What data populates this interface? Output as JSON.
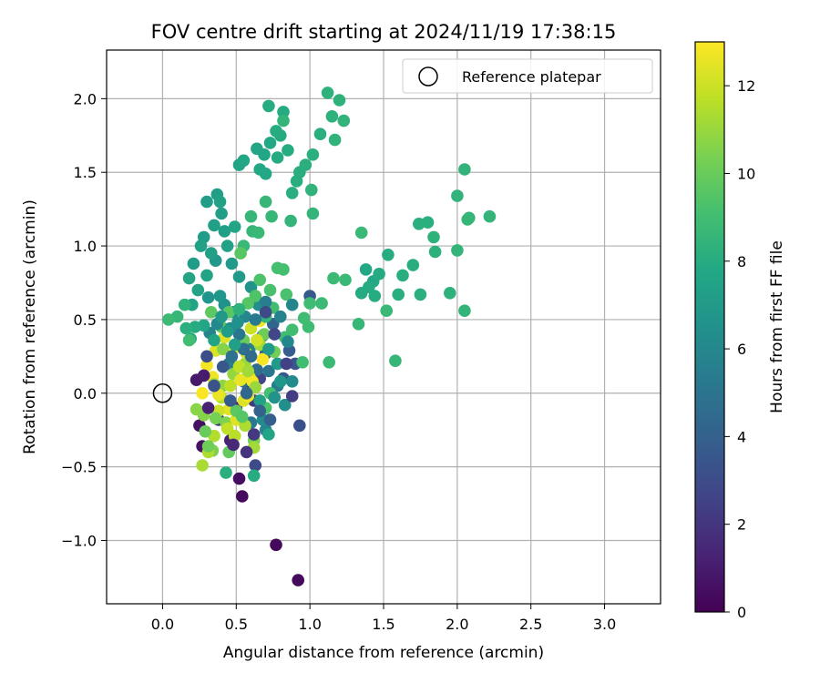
{
  "chart_data": {
    "type": "scatter",
    "title": "FOV centre drift starting at 2024/11/19 17:38:15",
    "xlabel": "Angular distance from reference (arcmin)",
    "ylabel": "Rotation from reference (arcmin)",
    "xlim": [
      -0.38,
      3.38
    ],
    "ylim": [
      -1.43,
      2.33
    ],
    "x_ticks": [
      0.0,
      0.5,
      1.0,
      1.5,
      2.0,
      2.5,
      3.0
    ],
    "x_tick_labels": [
      "0.0",
      "0.5",
      "1.0",
      "1.5",
      "2.0",
      "2.5",
      "3.0"
    ],
    "y_ticks": [
      -1.0,
      -0.5,
      0.0,
      0.5,
      1.0,
      1.5,
      2.0
    ],
    "y_tick_labels": [
      "−1.0",
      "−0.5",
      "0.0",
      "0.5",
      "1.0",
      "1.5",
      "2.0"
    ],
    "grid": true,
    "legend": {
      "position": "upper-right",
      "entries": [
        "Reference platepar"
      ]
    },
    "reference_point": {
      "x": 0.0,
      "y": 0.0
    },
    "colorbar": {
      "label": "Hours from first FF file",
      "range": [
        0,
        13
      ],
      "ticks": [
        0,
        2,
        4,
        6,
        8,
        10,
        12
      ],
      "tick_labels": [
        "0",
        "2",
        "4",
        "6",
        "8",
        "10",
        "12"
      ],
      "colormap": "viridis"
    },
    "points": [
      [
        0.77,
        -1.03,
        0.3
      ],
      [
        0.92,
        -1.27,
        0.3
      ],
      [
        0.54,
        -0.7,
        0.4
      ],
      [
        0.52,
        -0.58,
        0.5
      ],
      [
        0.25,
        -0.22,
        0.6
      ],
      [
        0.27,
        -0.36,
        0.6
      ],
      [
        0.23,
        0.09,
        0.9
      ],
      [
        0.46,
        -0.32,
        1.2
      ],
      [
        0.5,
        -0.1,
        1.6
      ],
      [
        0.58,
        0.02,
        1.8
      ],
      [
        0.38,
        -0.18,
        2.0
      ],
      [
        0.62,
        -0.05,
        2.2
      ],
      [
        0.66,
        0.1,
        2.6
      ],
      [
        0.63,
        -0.49,
        3.0
      ],
      [
        0.93,
        -0.22,
        3.2
      ],
      [
        0.9,
        0.2,
        3.4
      ],
      [
        0.82,
        0.1,
        3.5
      ],
      [
        1.0,
        0.66,
        3.6
      ],
      [
        0.86,
        0.29,
        3.8
      ],
      [
        0.7,
        0.27,
        4.0
      ],
      [
        0.75,
        0.47,
        4.2
      ],
      [
        0.68,
        0.39,
        4.4
      ],
      [
        0.64,
        0.16,
        4.6
      ],
      [
        0.55,
        0.08,
        4.8
      ],
      [
        0.72,
        0.15,
        5.0
      ],
      [
        0.6,
        -0.2,
        5.2
      ],
      [
        0.78,
        0.05,
        5.4
      ],
      [
        0.45,
        0.2,
        5.5
      ],
      [
        0.59,
        0.3,
        5.6
      ],
      [
        0.7,
        -0.25,
        5.8
      ],
      [
        0.56,
        0.52,
        6.0
      ],
      [
        0.88,
        0.08,
        6.2
      ],
      [
        0.48,
        0.55,
        6.3
      ],
      [
        0.65,
        0.6,
        6.4
      ],
      [
        0.42,
        0.6,
        6.5
      ],
      [
        0.6,
        0.72,
        6.6
      ],
      [
        0.31,
        0.65,
        6.7
      ],
      [
        0.39,
        0.66,
        6.8
      ],
      [
        0.36,
        0.9,
        6.9
      ],
      [
        0.47,
        0.88,
        7.0
      ],
      [
        0.52,
        0.79,
        7.0
      ],
      [
        0.21,
        0.88,
        7.1
      ],
      [
        0.28,
        1.06,
        7.1
      ],
      [
        0.3,
        1.3,
        7.2
      ],
      [
        0.37,
        1.35,
        7.2
      ],
      [
        0.4,
        1.22,
        7.2
      ],
      [
        0.42,
        1.1,
        7.3
      ],
      [
        0.35,
        1.14,
        7.3
      ],
      [
        0.33,
        0.95,
        7.3
      ],
      [
        0.44,
        1.0,
        7.4
      ],
      [
        0.39,
        1.3,
        7.4
      ],
      [
        0.26,
        1.0,
        7.4
      ],
      [
        0.3,
        0.8,
        7.5
      ],
      [
        0.24,
        0.7,
        7.5
      ],
      [
        0.2,
        0.6,
        7.5
      ],
      [
        0.18,
        0.78,
        7.6
      ],
      [
        0.49,
        1.13,
        7.6
      ],
      [
        0.52,
        1.55,
        7.6
      ],
      [
        0.55,
        1.58,
        7.7
      ],
      [
        0.64,
        1.66,
        7.7
      ],
      [
        0.69,
        1.62,
        7.7
      ],
      [
        0.7,
        1.49,
        7.8
      ],
      [
        0.73,
        1.7,
        7.8
      ],
      [
        0.66,
        1.52,
        7.8
      ],
      [
        0.78,
        1.6,
        7.9
      ],
      [
        0.8,
        1.75,
        7.9
      ],
      [
        0.82,
        1.91,
        7.9
      ],
      [
        0.77,
        1.78,
        8.0
      ],
      [
        0.72,
        1.95,
        8.0
      ],
      [
        0.85,
        1.65,
        8.0
      ],
      [
        0.88,
        1.36,
        8.1
      ],
      [
        0.93,
        1.5,
        8.1
      ],
      [
        0.91,
        1.44,
        8.1
      ],
      [
        0.97,
        1.55,
        8.2
      ],
      [
        1.02,
        1.62,
        8.2
      ],
      [
        1.07,
        1.76,
        8.2
      ],
      [
        1.12,
        2.04,
        8.3
      ],
      [
        1.15,
        1.88,
        8.3
      ],
      [
        1.2,
        1.99,
        8.3
      ],
      [
        1.23,
        1.85,
        8.4
      ],
      [
        1.17,
        1.72,
        8.4
      ],
      [
        1.01,
        1.38,
        8.4
      ],
      [
        1.02,
        1.22,
        8.5
      ],
      [
        0.82,
        1.85,
        8.5
      ],
      [
        0.87,
        1.17,
        8.5
      ],
      [
        0.74,
        1.2,
        8.6
      ],
      [
        0.7,
        1.3,
        8.6
      ],
      [
        0.6,
        1.2,
        8.6
      ],
      [
        0.61,
        1.1,
        8.6
      ],
      [
        0.65,
        1.09,
        8.7
      ],
      [
        0.55,
        1.0,
        8.7
      ],
      [
        1.38,
        0.84,
        7.8
      ],
      [
        1.43,
        0.76,
        7.8
      ],
      [
        1.47,
        0.81,
        7.9
      ],
      [
        1.4,
        0.72,
        7.9
      ],
      [
        1.35,
        0.68,
        7.9
      ],
      [
        1.53,
        0.94,
        8.0
      ],
      [
        1.44,
        0.66,
        8.0
      ],
      [
        1.6,
        0.67,
        8.1
      ],
      [
        1.63,
        0.8,
        8.1
      ],
      [
        1.7,
        0.87,
        8.1
      ],
      [
        1.74,
        1.15,
        8.2
      ],
      [
        1.75,
        0.67,
        8.2
      ],
      [
        1.8,
        1.16,
        8.2
      ],
      [
        1.84,
        1.06,
        8.3
      ],
      [
        1.85,
        0.96,
        8.3
      ],
      [
        1.95,
        0.68,
        8.3
      ],
      [
        2.0,
        1.34,
        8.4
      ],
      [
        2.05,
        1.52,
        8.4
      ],
      [
        2.08,
        1.19,
        8.4
      ],
      [
        2.0,
        0.97,
        8.5
      ],
      [
        2.05,
        0.56,
        8.5
      ],
      [
        2.22,
        1.2,
        8.5
      ],
      [
        2.07,
        1.18,
        8.6
      ],
      [
        1.58,
        0.22,
        8.6
      ],
      [
        1.33,
        0.47,
        8.6
      ],
      [
        1.52,
        0.56,
        8.7
      ],
      [
        1.35,
        1.09,
        8.7
      ],
      [
        1.24,
        0.77,
        8.7
      ],
      [
        1.16,
        0.78,
        8.8
      ],
      [
        1.08,
        0.61,
        8.8
      ],
      [
        1.13,
        0.21,
        8.8
      ],
      [
        1.0,
        0.61,
        8.9
      ],
      [
        0.99,
        0.45,
        8.9
      ],
      [
        0.96,
        0.51,
        8.9
      ],
      [
        0.95,
        0.21,
        9.0
      ],
      [
        0.88,
        0.43,
        9.0
      ],
      [
        0.82,
        0.84,
        9.1
      ],
      [
        0.78,
        0.85,
        9.1
      ],
      [
        0.84,
        0.67,
        9.2
      ],
      [
        0.73,
        0.7,
        9.2
      ],
      [
        0.66,
        0.77,
        9.3
      ],
      [
        0.63,
        0.66,
        9.4
      ],
      [
        0.58,
        0.61,
        9.5
      ],
      [
        0.53,
        0.95,
        9.6
      ],
      [
        0.45,
        0.55,
        9.6
      ],
      [
        0.33,
        0.55,
        9.7
      ],
      [
        0.4,
        0.45,
        9.8
      ],
      [
        0.55,
        0.36,
        10.0
      ],
      [
        0.69,
        0.4,
        10.1
      ],
      [
        0.76,
        0.28,
        10.2
      ],
      [
        0.62,
        -0.32,
        10.3
      ],
      [
        0.34,
        -0.39,
        10.4
      ],
      [
        0.43,
        -0.2,
        10.5
      ],
      [
        0.28,
        -0.15,
        10.6
      ],
      [
        0.23,
        -0.11,
        10.7
      ],
      [
        0.41,
        0.05,
        10.8
      ],
      [
        0.48,
        0.13,
        10.9
      ],
      [
        0.56,
        0.2,
        11.0
      ],
      [
        0.66,
        0.33,
        11.1
      ],
      [
        0.62,
        -0.37,
        11.2
      ],
      [
        0.27,
        -0.49,
        11.3
      ],
      [
        0.31,
        -0.4,
        11.4
      ],
      [
        0.35,
        -0.29,
        11.5
      ],
      [
        0.4,
        -0.03,
        11.6
      ],
      [
        0.46,
        0.05,
        11.7
      ],
      [
        0.52,
        0.18,
        11.8
      ],
      [
        0.57,
        0.27,
        11.9
      ],
      [
        0.6,
        0.44,
        12.0
      ],
      [
        0.64,
        0.36,
        12.1
      ],
      [
        0.59,
        0.11,
        12.2
      ],
      [
        0.55,
        -0.05,
        12.3
      ],
      [
        0.5,
        -0.18,
        12.4
      ],
      [
        0.45,
        -0.11,
        12.5
      ],
      [
        0.38,
        -0.01,
        12.6
      ],
      [
        0.34,
        0.11,
        12.7
      ],
      [
        0.3,
        0.19,
        12.8
      ],
      [
        0.27,
        0.0,
        12.9
      ],
      [
        0.36,
        0.29,
        12.3
      ],
      [
        0.42,
        0.38,
        12.4
      ],
      [
        0.48,
        0.3,
        12.5
      ],
      [
        0.53,
        0.09,
        12.6
      ],
      [
        0.58,
        -0.02,
        12.7
      ],
      [
        0.61,
        0.08,
        12.8
      ],
      [
        0.66,
        0.49,
        12.8
      ],
      [
        0.68,
        0.23,
        12.9
      ],
      [
        0.38,
        -0.12,
        12.0
      ],
      [
        0.44,
        -0.24,
        11.8
      ],
      [
        0.49,
        -0.29,
        11.6
      ],
      [
        0.56,
        -0.22,
        11.4
      ],
      [
        0.58,
        0.15,
        11.2
      ],
      [
        0.63,
        0.04,
        11.0
      ],
      [
        0.35,
        0.06,
        10.8
      ],
      [
        0.41,
        0.3,
        10.6
      ],
      [
        0.36,
        -0.17,
        10.3
      ],
      [
        0.31,
        -0.36,
        10.1
      ],
      [
        0.29,
        -0.26,
        10.0
      ],
      [
        0.45,
        -0.4,
        9.9
      ],
      [
        0.5,
        -0.12,
        9.7
      ],
      [
        0.54,
        -0.16,
        9.5
      ],
      [
        0.7,
        -0.1,
        9.3
      ],
      [
        0.73,
        0.0,
        9.1
      ],
      [
        0.75,
        0.58,
        9.0
      ],
      [
        0.83,
        0.38,
        8.9
      ],
      [
        0.7,
        0.52,
        8.5
      ],
      [
        0.52,
        0.57,
        8.3
      ],
      [
        0.43,
        -0.54,
        8.2
      ],
      [
        0.62,
        -0.56,
        8.0
      ],
      [
        0.72,
        -0.28,
        7.6
      ],
      [
        0.66,
        -0.05,
        7.4
      ],
      [
        0.72,
        0.3,
        7.0
      ],
      [
        0.78,
        0.2,
        7.0
      ],
      [
        0.8,
        0.08,
        6.8
      ],
      [
        0.76,
        -0.03,
        6.6
      ],
      [
        0.83,
        -0.08,
        6.4
      ],
      [
        0.68,
        -0.18,
        6.2
      ],
      [
        0.85,
        0.35,
        6.0
      ],
      [
        0.88,
        0.6,
        5.9
      ],
      [
        0.8,
        0.52,
        5.7
      ],
      [
        0.7,
        0.62,
        5.5
      ],
      [
        0.63,
        0.5,
        5.3
      ],
      [
        0.52,
        0.4,
        5.1
      ],
      [
        0.47,
        0.25,
        4.9
      ],
      [
        0.55,
        0.3,
        4.7
      ],
      [
        0.6,
        0.25,
        4.5
      ],
      [
        0.57,
        0.0,
        4.3
      ],
      [
        0.66,
        -0.12,
        4.1
      ],
      [
        0.73,
        -0.18,
        3.9
      ],
      [
        0.46,
        -0.05,
        3.7
      ],
      [
        0.41,
        0.18,
        3.5
      ],
      [
        0.35,
        0.05,
        3.3
      ],
      [
        0.3,
        0.25,
        3.1
      ],
      [
        0.7,
        0.55,
        2.9
      ],
      [
        0.76,
        0.4,
        2.7
      ],
      [
        0.84,
        0.2,
        2.5
      ],
      [
        0.88,
        -0.02,
        2.3
      ],
      [
        0.62,
        -0.28,
        2.1
      ],
      [
        0.57,
        -0.4,
        1.9
      ],
      [
        0.48,
        -0.35,
        1.5
      ],
      [
        0.31,
        -0.1,
        1.2
      ],
      [
        0.28,
        0.12,
        1.0
      ],
      [
        0.32,
        0.41,
        5.9
      ],
      [
        0.37,
        0.47,
        6.1
      ],
      [
        0.46,
        0.44,
        6.3
      ],
      [
        0.51,
        0.48,
        6.5
      ],
      [
        0.4,
        0.52,
        6.9
      ],
      [
        0.44,
        0.42,
        7.1
      ],
      [
        0.49,
        0.33,
        7.3
      ],
      [
        0.35,
        0.36,
        7.5
      ],
      [
        0.28,
        0.46,
        7.7
      ],
      [
        0.22,
        0.45,
        7.9
      ],
      [
        0.19,
        0.37,
        8.0
      ],
      [
        0.16,
        0.44,
        8.2
      ],
      [
        0.15,
        0.6,
        8.4
      ],
      [
        0.1,
        0.52,
        8.6
      ],
      [
        0.04,
        0.5,
        8.8
      ],
      [
        0.18,
        0.36,
        9.0
      ]
    ]
  }
}
